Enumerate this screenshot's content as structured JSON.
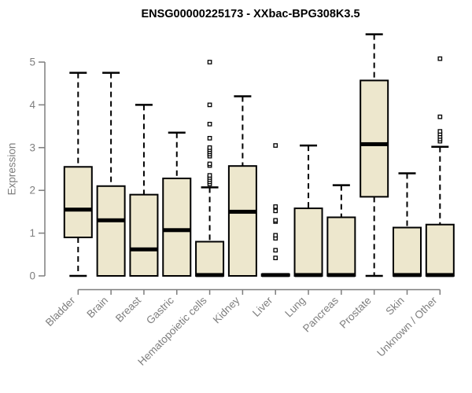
{
  "chart_data": {
    "type": "boxplot",
    "title": "ENSG00000225173 - XXbac-BPG308K3.5",
    "ylabel": "Expression",
    "ylim": [
      0,
      5
    ],
    "yticks": [
      0,
      1,
      2,
      3,
      4,
      5
    ],
    "grid": false,
    "legend": null,
    "categories": [
      "Bladder",
      "Brain",
      "Breast",
      "Gastric",
      "Hematopoietic cells",
      "Kidney",
      "Liver",
      "Lung",
      "Pancreas",
      "Prostate",
      "Skin",
      "Unknown / Other"
    ],
    "series": [
      {
        "name": "Bladder",
        "low": 0,
        "q1": 0.9,
        "median": 1.55,
        "q3": 2.55,
        "high": 4.75,
        "outliers": []
      },
      {
        "name": "Brain",
        "low": 0,
        "q1": 0,
        "median": 1.3,
        "q3": 2.1,
        "high": 4.75,
        "outliers": []
      },
      {
        "name": "Breast",
        "low": 0,
        "q1": 0,
        "median": 0.62,
        "q3": 1.9,
        "high": 4.0,
        "outliers": []
      },
      {
        "name": "Gastric",
        "low": 0,
        "q1": 0,
        "median": 1.07,
        "q3": 2.28,
        "high": 3.35,
        "outliers": []
      },
      {
        "name": "Hematopoietic cells",
        "low": 0,
        "q1": 0,
        "median": 0.02,
        "q3": 0.8,
        "high": 2.07,
        "outliers": [
          2.15,
          2.2,
          2.25,
          2.3,
          2.35,
          2.58,
          2.62,
          2.8,
          2.85,
          2.9,
          2.95,
          3.0,
          3.22,
          3.55,
          4.0,
          5.0
        ]
      },
      {
        "name": "Kidney",
        "low": 0,
        "q1": 0,
        "median": 1.5,
        "q3": 2.57,
        "high": 4.2,
        "outliers": []
      },
      {
        "name": "Liver",
        "low": 0,
        "q1": 0,
        "median": 0.02,
        "q3": 0.04,
        "high": 0.04,
        "outliers": [
          0.42,
          0.6,
          0.88,
          0.95,
          1.27,
          1.3,
          1.52,
          1.62,
          3.05
        ]
      },
      {
        "name": "Lung",
        "low": 0,
        "q1": 0,
        "median": 0.02,
        "q3": 1.58,
        "high": 3.05,
        "outliers": []
      },
      {
        "name": "Pancreas",
        "low": 0,
        "q1": 0,
        "median": 0.02,
        "q3": 1.37,
        "high": 2.12,
        "outliers": []
      },
      {
        "name": "Prostate",
        "low": 0,
        "q1": 1.85,
        "median": 3.08,
        "q3": 4.57,
        "high": 5.65,
        "outliers": []
      },
      {
        "name": "Skin",
        "low": 0,
        "q1": 0,
        "median": 0.02,
        "q3": 1.13,
        "high": 2.4,
        "outliers": []
      },
      {
        "name": "Unknown / Other",
        "low": 0,
        "q1": 0,
        "median": 0.02,
        "q3": 1.2,
        "high": 3.02,
        "outliers": [
          3.15,
          3.2,
          3.26,
          3.32,
          3.38,
          3.72,
          5.08
        ]
      }
    ],
    "colors": {
      "box_fill": "#EDE7CD",
      "box_border": "#000000",
      "median": "#000000",
      "whisker": "#000000",
      "outlier_border": "#000000",
      "axis": "#7e7e7e",
      "title": "#000000",
      "background": "#ffffff"
    }
  }
}
